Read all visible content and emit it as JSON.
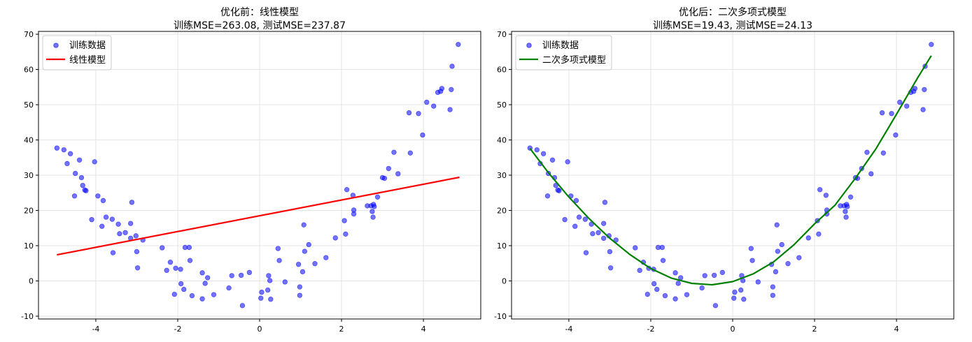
{
  "chart_data": [
    {
      "type": "scatter",
      "title": "优化前：线性模型",
      "subtitle": "训练MSE=263.08, 测试MSE=237.87",
      "xlabel": "",
      "ylabel": "",
      "xlim": [
        -5.4,
        5.4
      ],
      "ylim": [
        -10.8,
        70.8
      ],
      "xticks": [
        -4,
        -2,
        0,
        2,
        4
      ],
      "yticks": [
        -10,
        0,
        10,
        20,
        30,
        40,
        50,
        60,
        70
      ],
      "grid": true,
      "legend_position": "top-left",
      "series": [
        {
          "name": "训练数据",
          "kind": "scatter",
          "color": "#0000ff",
          "points": [
            [
              -4.95,
              37.7
            ],
            [
              -4.78,
              37.2
            ],
            [
              -4.7,
              33.3
            ],
            [
              -4.62,
              36.1
            ],
            [
              -4.52,
              24.1
            ],
            [
              -4.5,
              30.5
            ],
            [
              -4.4,
              34.3
            ],
            [
              -4.35,
              29.3
            ],
            [
              -4.32,
              27.1
            ],
            [
              -4.27,
              25.8
            ],
            [
              -4.24,
              25.6
            ],
            [
              -4.1,
              17.4
            ],
            [
              -4.03,
              33.8
            ],
            [
              -3.95,
              24.1
            ],
            [
              -3.85,
              15.5
            ],
            [
              -3.82,
              22.8
            ],
            [
              -3.75,
              18.1
            ],
            [
              -3.6,
              17.5
            ],
            [
              -3.58,
              8.0
            ],
            [
              -3.45,
              16.1
            ],
            [
              -3.42,
              13.4
            ],
            [
              -3.28,
              13.7
            ],
            [
              -3.15,
              16.3
            ],
            [
              -3.15,
              12.1
            ],
            [
              -3.12,
              22.3
            ],
            [
              -3.02,
              12.8
            ],
            [
              -3.0,
              8.3
            ],
            [
              -2.98,
              3.7
            ],
            [
              -2.85,
              11.6
            ],
            [
              -2.38,
              9.4
            ],
            [
              -2.27,
              3.0
            ],
            [
              -2.18,
              5.3
            ],
            [
              -2.08,
              -3.8
            ],
            [
              -2.05,
              3.6
            ],
            [
              -1.93,
              3.3
            ],
            [
              -1.92,
              -0.8
            ],
            [
              -1.85,
              -2.4
            ],
            [
              -1.82,
              9.5
            ],
            [
              -1.72,
              9.5
            ],
            [
              -1.7,
              5.8
            ],
            [
              -1.65,
              -4.2
            ],
            [
              -1.4,
              -5.1
            ],
            [
              -1.4,
              2.3
            ],
            [
              -1.33,
              -0.7
            ],
            [
              -1.27,
              0.9
            ],
            [
              -1.12,
              -3.9
            ],
            [
              -0.75,
              -2.0
            ],
            [
              -0.68,
              1.5
            ],
            [
              -0.45,
              1.6
            ],
            [
              -0.42,
              -7.0
            ],
            [
              -0.25,
              2.4
            ],
            [
              0.03,
              -4.9
            ],
            [
              0.05,
              -3.2
            ],
            [
              0.2,
              -2.6
            ],
            [
              0.22,
              1.5
            ],
            [
              0.25,
              0.1
            ],
            [
              0.27,
              -5.2
            ],
            [
              0.45,
              9.2
            ],
            [
              0.48,
              5.8
            ],
            [
              0.62,
              -0.3
            ],
            [
              0.95,
              4.7
            ],
            [
              0.98,
              -1.7
            ],
            [
              0.98,
              -4.1
            ],
            [
              1.05,
              2.6
            ],
            [
              1.08,
              15.9
            ],
            [
              1.1,
              8.4
            ],
            [
              1.2,
              10.3
            ],
            [
              1.35,
              4.9
            ],
            [
              1.62,
              6.6
            ],
            [
              1.85,
              12.2
            ],
            [
              2.07,
              17.1
            ],
            [
              2.1,
              13.3
            ],
            [
              2.13,
              25.9
            ],
            [
              2.28,
              24.3
            ],
            [
              2.3,
              20.1
            ],
            [
              2.3,
              19.0
            ],
            [
              2.63,
              21.3
            ],
            [
              2.72,
              21.3
            ],
            [
              2.75,
              19.7
            ],
            [
              2.77,
              18.1
            ],
            [
              2.78,
              21.7
            ],
            [
              2.8,
              21.1
            ],
            [
              2.88,
              23.8
            ],
            [
              3.0,
              29.3
            ],
            [
              3.05,
              29.1
            ],
            [
              3.15,
              31.9
            ],
            [
              3.28,
              36.5
            ],
            [
              3.38,
              30.4
            ],
            [
              3.65,
              47.7
            ],
            [
              3.68,
              36.3
            ],
            [
              3.88,
              47.5
            ],
            [
              3.98,
              41.4
            ],
            [
              4.08,
              50.7
            ],
            [
              4.25,
              49.6
            ],
            [
              4.35,
              53.5
            ],
            [
              4.42,
              53.8
            ],
            [
              4.45,
              54.6
            ],
            [
              4.65,
              48.6
            ],
            [
              4.68,
              54.3
            ],
            [
              4.7,
              60.9
            ],
            [
              4.85,
              67.1
            ]
          ]
        },
        {
          "name": "线性模型",
          "kind": "line",
          "color": "#ff0000",
          "points": [
            [
              -4.95,
              7.4
            ],
            [
              4.88,
              29.4
            ]
          ]
        }
      ]
    },
    {
      "type": "scatter",
      "title": "优化后：二次多项式模型",
      "subtitle": "训练MSE=19.43, 测试MSE=24.13",
      "xlabel": "",
      "ylabel": "",
      "xlim": [
        -5.4,
        5.4
      ],
      "ylim": [
        -10.8,
        70.8
      ],
      "xticks": [
        -4,
        -2,
        0,
        2,
        4
      ],
      "yticks": [
        -10,
        0,
        10,
        20,
        30,
        40,
        50,
        60,
        70
      ],
      "grid": true,
      "legend_position": "top-left",
      "series": [
        {
          "name": "训练数据",
          "kind": "scatter",
          "color": "#0000ff",
          "points": [
            [
              -4.95,
              37.7
            ],
            [
              -4.78,
              37.2
            ],
            [
              -4.7,
              33.3
            ],
            [
              -4.62,
              36.1
            ],
            [
              -4.52,
              24.1
            ],
            [
              -4.5,
              30.5
            ],
            [
              -4.4,
              34.3
            ],
            [
              -4.35,
              29.3
            ],
            [
              -4.32,
              27.1
            ],
            [
              -4.27,
              25.8
            ],
            [
              -4.24,
              25.6
            ],
            [
              -4.1,
              17.4
            ],
            [
              -4.03,
              33.8
            ],
            [
              -3.95,
              24.1
            ],
            [
              -3.85,
              15.5
            ],
            [
              -3.82,
              22.8
            ],
            [
              -3.75,
              18.1
            ],
            [
              -3.6,
              17.5
            ],
            [
              -3.58,
              8.0
            ],
            [
              -3.45,
              16.1
            ],
            [
              -3.42,
              13.4
            ],
            [
              -3.28,
              13.7
            ],
            [
              -3.15,
              16.3
            ],
            [
              -3.15,
              12.1
            ],
            [
              -3.12,
              22.3
            ],
            [
              -3.02,
              12.8
            ],
            [
              -3.0,
              8.3
            ],
            [
              -2.98,
              3.7
            ],
            [
              -2.85,
              11.6
            ],
            [
              -2.38,
              9.4
            ],
            [
              -2.27,
              3.0
            ],
            [
              -2.18,
              5.3
            ],
            [
              -2.08,
              -3.8
            ],
            [
              -2.05,
              3.6
            ],
            [
              -1.93,
              3.3
            ],
            [
              -1.92,
              -0.8
            ],
            [
              -1.85,
              -2.4
            ],
            [
              -1.82,
              9.5
            ],
            [
              -1.72,
              9.5
            ],
            [
              -1.7,
              5.8
            ],
            [
              -1.65,
              -4.2
            ],
            [
              -1.4,
              -5.1
            ],
            [
              -1.4,
              2.3
            ],
            [
              -1.33,
              -0.7
            ],
            [
              -1.27,
              0.9
            ],
            [
              -1.12,
              -3.9
            ],
            [
              -0.75,
              -2.0
            ],
            [
              -0.68,
              1.5
            ],
            [
              -0.45,
              1.6
            ],
            [
              -0.42,
              -7.0
            ],
            [
              -0.25,
              2.4
            ],
            [
              0.03,
              -4.9
            ],
            [
              0.05,
              -3.2
            ],
            [
              0.2,
              -2.6
            ],
            [
              0.22,
              1.5
            ],
            [
              0.25,
              0.1
            ],
            [
              0.27,
              -5.2
            ],
            [
              0.45,
              9.2
            ],
            [
              0.48,
              5.8
            ],
            [
              0.62,
              -0.3
            ],
            [
              0.95,
              4.7
            ],
            [
              0.98,
              -1.7
            ],
            [
              0.98,
              -4.1
            ],
            [
              1.05,
              2.6
            ],
            [
              1.08,
              15.9
            ],
            [
              1.1,
              8.4
            ],
            [
              1.2,
              10.3
            ],
            [
              1.35,
              4.9
            ],
            [
              1.62,
              6.6
            ],
            [
              1.85,
              12.2
            ],
            [
              2.07,
              17.1
            ],
            [
              2.1,
              13.3
            ],
            [
              2.13,
              25.9
            ],
            [
              2.28,
              24.3
            ],
            [
              2.3,
              20.1
            ],
            [
              2.3,
              19.0
            ],
            [
              2.63,
              21.3
            ],
            [
              2.72,
              21.3
            ],
            [
              2.75,
              19.7
            ],
            [
              2.77,
              18.1
            ],
            [
              2.78,
              21.7
            ],
            [
              2.8,
              21.1
            ],
            [
              2.88,
              23.8
            ],
            [
              3.0,
              29.3
            ],
            [
              3.05,
              29.1
            ],
            [
              3.15,
              31.9
            ],
            [
              3.28,
              36.5
            ],
            [
              3.38,
              30.4
            ],
            [
              3.65,
              47.7
            ],
            [
              3.68,
              36.3
            ],
            [
              3.88,
              47.5
            ],
            [
              3.98,
              41.4
            ],
            [
              4.08,
              50.7
            ],
            [
              4.25,
              49.6
            ],
            [
              4.35,
              53.5
            ],
            [
              4.42,
              53.8
            ],
            [
              4.45,
              54.6
            ],
            [
              4.65,
              48.6
            ],
            [
              4.68,
              54.3
            ],
            [
              4.7,
              60.9
            ],
            [
              4.85,
              67.1
            ]
          ]
        },
        {
          "name": "二次多项式模型",
          "kind": "line",
          "color": "#008000",
          "points": [
            [
              -4.95,
              37.6
            ],
            [
              -4.5,
              30.7
            ],
            [
              -4.0,
              23.8
            ],
            [
              -3.5,
              17.6
            ],
            [
              -3.0,
              12.1
            ],
            [
              -2.5,
              7.4
            ],
            [
              -2.0,
              3.5
            ],
            [
              -1.5,
              0.8
            ],
            [
              -1.0,
              -0.7
            ],
            [
              -0.5,
              -1.1
            ],
            [
              0.0,
              -0.2
            ],
            [
              0.5,
              2.0
            ],
            [
              1.0,
              5.4
            ],
            [
              1.5,
              10.3
            ],
            [
              2.0,
              16.2
            ],
            [
              2.5,
              21.5
            ],
            [
              3.0,
              29.2
            ],
            [
              3.5,
              37.5
            ],
            [
              4.0,
              47.3
            ],
            [
              4.5,
              57.3
            ],
            [
              4.85,
              63.9
            ]
          ]
        }
      ]
    }
  ]
}
